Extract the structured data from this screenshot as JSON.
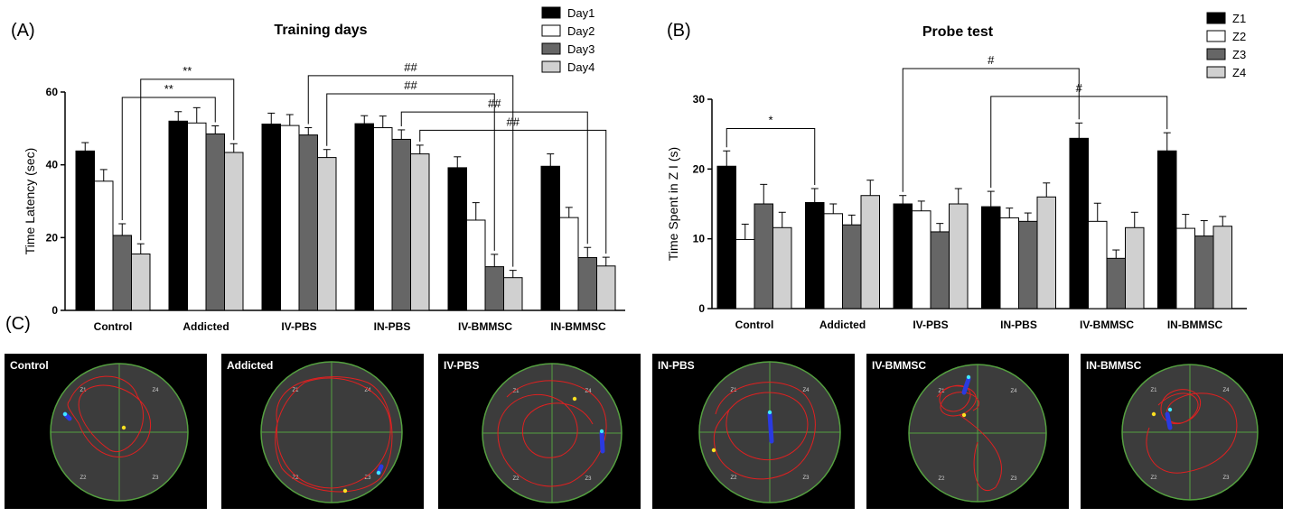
{
  "panel_labels": {
    "a": "(A)",
    "b": "(B)",
    "c": "(C)"
  },
  "chart_data": [
    {
      "type": "bar",
      "title": "Training days",
      "xlabel": "",
      "ylabel": "Time Latency (sec)",
      "ylim": [
        0,
        60
      ],
      "yticks": [
        "0",
        "20",
        "40",
        "60"
      ],
      "ytick_values": [
        0,
        20,
        40,
        60
      ],
      "categories": [
        "Control",
        "Addicted",
        "IV-PBS",
        "IN-PBS",
        "IV-BMMSC",
        "IN-BMMSC"
      ],
      "series": [
        {
          "name": "Day1",
          "color": "#000000",
          "values": [
            43.8,
            52.0,
            51.2,
            51.3,
            39.2,
            39.6
          ],
          "errors": [
            2.3,
            2.6,
            3.0,
            2.2,
            3.0,
            3.4
          ]
        },
        {
          "name": "Day2",
          "color": "#ffffff",
          "values": [
            35.5,
            51.5,
            50.8,
            50.2,
            24.8,
            25.5
          ],
          "errors": [
            3.2,
            4.2,
            3.0,
            3.2,
            4.8,
            2.8
          ]
        },
        {
          "name": "Day3",
          "color": "#666666",
          "values": [
            20.6,
            48.5,
            48.2,
            47.0,
            12.0,
            14.5
          ],
          "errors": [
            3.2,
            2.2,
            2.0,
            2.6,
            3.4,
            2.8
          ]
        },
        {
          "name": "Day4",
          "color": "#d0d0d0",
          "values": [
            15.5,
            43.4,
            42.0,
            43.0,
            9.0,
            12.2
          ],
          "errors": [
            2.8,
            2.4,
            2.2,
            2.4,
            2.0,
            2.4
          ]
        }
      ],
      "annotations": [
        "**",
        "**",
        "##",
        "##",
        "##",
        "##"
      ],
      "brackets": [
        {
          "label": "**",
          "from": [
            0,
            3
          ],
          "to": [
            1,
            3
          ],
          "level": 63.5
        },
        {
          "label": "**",
          "from": [
            0,
            2
          ],
          "to": [
            1,
            2
          ],
          "level": 58.5
        },
        {
          "label": "##",
          "from": [
            2,
            2
          ],
          "to": [
            4,
            3
          ],
          "level": 64.5
        },
        {
          "label": "##",
          "from": [
            2,
            3
          ],
          "to": [
            4,
            2
          ],
          "level": 59.5
        },
        {
          "label": "##",
          "from": [
            3,
            2
          ],
          "to": [
            5,
            2
          ],
          "level": 54.5
        },
        {
          "label": "##",
          "from": [
            3,
            3
          ],
          "to": [
            5,
            3
          ],
          "level": 49.5
        }
      ]
    },
    {
      "type": "bar",
      "title": "Probe test",
      "xlabel": "",
      "ylabel": "Time Spent in Z I (s)",
      "ylim": [
        0,
        30
      ],
      "yticks": [
        "0",
        "10",
        "20",
        "30"
      ],
      "ytick_values": [
        0,
        10,
        20,
        30
      ],
      "categories": [
        "Control",
        "Addicted",
        "IV-PBS",
        "IN-PBS",
        "IV-BMMSC",
        "IN-BMMSC"
      ],
      "series": [
        {
          "name": "Z1",
          "color": "#000000",
          "values": [
            20.4,
            15.2,
            15.0,
            14.6,
            24.4,
            22.6
          ],
          "errors": [
            2.2,
            2.0,
            1.2,
            2.2,
            2.2,
            2.6
          ]
        },
        {
          "name": "Z2",
          "color": "#ffffff",
          "values": [
            9.9,
            13.6,
            14.0,
            13.0,
            12.5,
            11.5
          ],
          "errors": [
            2.2,
            1.4,
            1.4,
            1.4,
            2.6,
            2.0
          ]
        },
        {
          "name": "Z3",
          "color": "#666666",
          "values": [
            15.0,
            12.0,
            11.0,
            12.5,
            7.2,
            10.4
          ],
          "errors": [
            2.8,
            1.4,
            1.2,
            1.2,
            1.2,
            2.2
          ]
        },
        {
          "name": "Z4",
          "color": "#d0d0d0",
          "values": [
            11.6,
            16.2,
            15.0,
            16.0,
            11.6,
            11.8
          ],
          "errors": [
            2.2,
            2.2,
            2.2,
            2.0,
            2.2,
            1.4
          ]
        }
      ],
      "annotations": [
        "*",
        "#",
        "#"
      ],
      "brackets": [
        {
          "label": "*",
          "from": [
            0,
            0
          ],
          "to": [
            1,
            0
          ],
          "level": 25.8
        },
        {
          "label": "#",
          "from": [
            2,
            0
          ],
          "to": [
            4,
            0
          ],
          "level": 34.4
        },
        {
          "label": "#",
          "from": [
            3,
            0
          ],
          "to": [
            5,
            0
          ],
          "level": 30.4
        }
      ]
    }
  ],
  "tracks": [
    {
      "label": "Control",
      "zones": [
        "Z1",
        "Z4",
        "Z2",
        "Z3"
      ]
    },
    {
      "label": "Addicted",
      "zones": [
        "Z1",
        "Z4",
        "Z2",
        "Z3"
      ]
    },
    {
      "label": "IV-PBS",
      "zones": [
        "Z1",
        "Z4",
        "Z2",
        "Z3"
      ]
    },
    {
      "label": "IN-PBS",
      "zones": [
        "Z1",
        "Z4",
        "Z2",
        "Z3"
      ]
    },
    {
      "label": "IV-BMMSC",
      "zones": [
        "Z1",
        "Z4",
        "Z2",
        "Z3"
      ]
    },
    {
      "label": "IN-BMMSC",
      "zones": [
        "Z1",
        "Z4",
        "Z2",
        "Z3"
      ]
    }
  ]
}
